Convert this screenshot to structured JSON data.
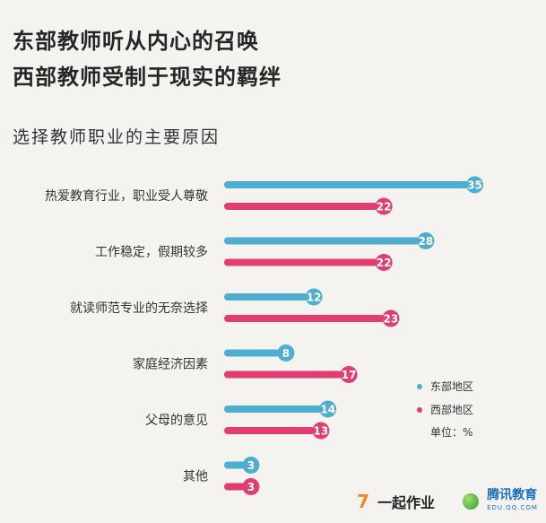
{
  "header": {
    "title_line1": "东部教师听从内心的召唤",
    "title_line2": "西部教师受制于现实的羁绊",
    "subtitle": "选择教师职业的主要原因"
  },
  "colors": {
    "east": "#4eaecf",
    "west": "#e13d72",
    "background": "#f5f3f0"
  },
  "chart_data": {
    "type": "bar",
    "orientation": "horizontal",
    "title": "选择教师职业的主要原因",
    "categories": [
      "热爱教育行业，职业受人尊敬",
      "工作稳定，假期较多",
      "就读师范专业的无奈选择",
      "家庭经济因素",
      "父母的意见",
      "其他"
    ],
    "series": [
      {
        "name": "东部地区",
        "values": [
          35,
          28,
          12,
          8,
          14,
          3
        ]
      },
      {
        "name": "西部地区",
        "values": [
          22,
          22,
          23,
          17,
          13,
          3
        ]
      }
    ],
    "unit_label": "单位：%",
    "legend_position": "right",
    "grid": false,
    "xlim": [
      0,
      35
    ]
  },
  "footer": {
    "logo1_mark": "7",
    "logo1_text": "一起作业",
    "logo2_text": "腾讯教育",
    "logo2_sub": "EDU.QQ.COM"
  }
}
